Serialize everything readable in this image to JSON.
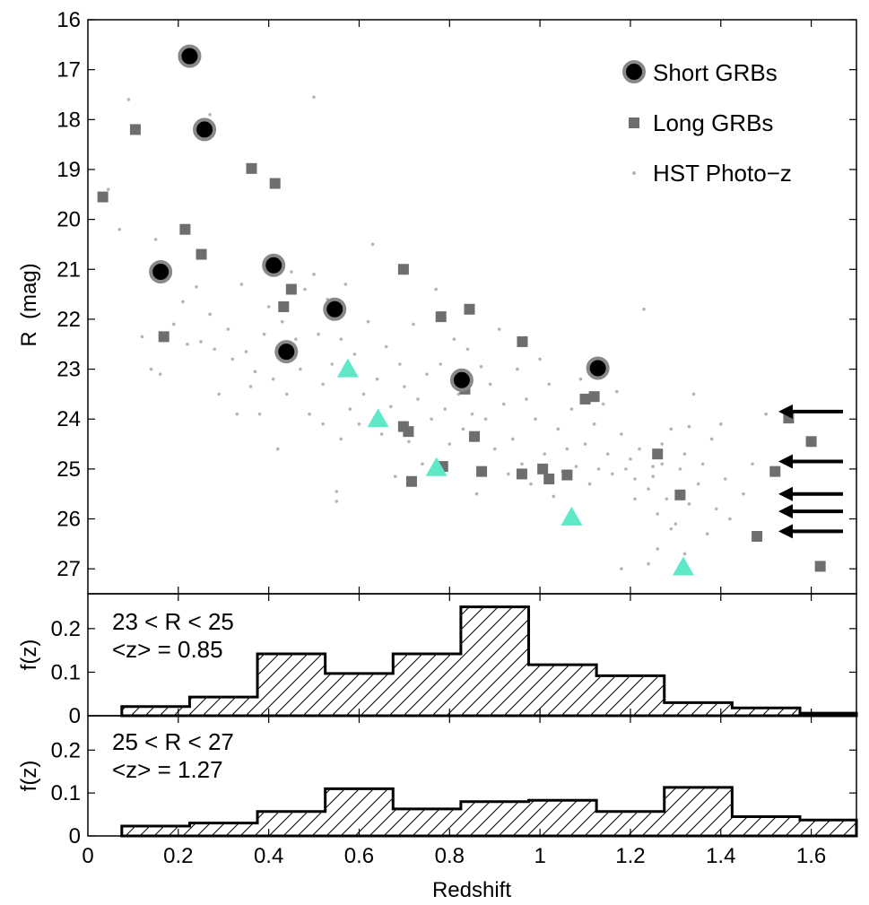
{
  "colors": {
    "short": "#000000",
    "short_ring": "#888888",
    "long": "#6e6e6e",
    "photoz": "#b4b4b4",
    "triangle": "#5fe8c8",
    "arrow": "#000000",
    "hist": "#000000"
  },
  "chart_data": [
    {
      "type": "scatter",
      "panel": "top",
      "title": "",
      "xlabel": "",
      "ylabel": "R  (mag)",
      "xlim": [
        0,
        1.7
      ],
      "ylim": [
        27.5,
        16
      ],
      "yticks": [
        "16",
        "17",
        "18",
        "19",
        "20",
        "21",
        "22",
        "23",
        "24",
        "25",
        "26",
        "27"
      ],
      "legend": {
        "position": "top-right",
        "entries": [
          {
            "key": "short",
            "label": "Short GRBs"
          },
          {
            "key": "long",
            "label": "Long GRBs"
          },
          {
            "key": "photoz",
            "label": "HST Photo−z"
          }
        ]
      },
      "series": [
        {
          "name": "Short GRBs",
          "marker": "circle",
          "points": [
            [
              0.225,
              16.73
            ],
            [
              0.258,
              18.2
            ],
            [
              0.161,
              21.05
            ],
            [
              0.411,
              20.92
            ],
            [
              0.546,
              21.8
            ],
            [
              0.439,
              22.65
            ],
            [
              0.827,
              23.22
            ],
            [
              1.128,
              22.98
            ]
          ]
        },
        {
          "name": "Long GRBs",
          "marker": "square",
          "points": [
            [
              0.033,
              19.55
            ],
            [
              0.105,
              18.2
            ],
            [
              0.215,
              20.2
            ],
            [
              0.251,
              20.7
            ],
            [
              0.362,
              18.98
            ],
            [
              0.414,
              19.28
            ],
            [
              0.433,
              21.75
            ],
            [
              0.45,
              21.4
            ],
            [
              0.168,
              22.35
            ],
            [
              0.698,
              21.0
            ],
            [
              0.781,
              21.95
            ],
            [
              0.844,
              21.8
            ],
            [
              0.961,
              22.45
            ],
            [
              0.698,
              24.15
            ],
            [
              0.709,
              24.25
            ],
            [
              0.716,
              25.25
            ],
            [
              0.785,
              24.95
            ],
            [
              0.855,
              24.35
            ],
            [
              0.834,
              23.4
            ],
            [
              0.871,
              25.05
            ],
            [
              0.96,
              25.1
            ],
            [
              1.006,
              25.0
            ],
            [
              1.02,
              25.2
            ],
            [
              1.06,
              25.12
            ],
            [
              1.1,
              23.6
            ],
            [
              1.12,
              23.55
            ],
            [
              1.26,
              24.7
            ],
            [
              1.31,
              25.52
            ],
            [
              1.55,
              23.98
            ],
            [
              1.52,
              25.05
            ],
            [
              1.6,
              24.45
            ],
            [
              1.48,
              26.35
            ],
            [
              1.62,
              26.95
            ]
          ]
        },
        {
          "name": "HST Photo−z",
          "marker": "dot",
          "points": [
            [
              0.045,
              19.4
            ],
            [
              0.07,
              20.2
            ],
            [
              0.09,
              17.6
            ],
            [
              0.15,
              20.4
            ],
            [
              0.12,
              22.35
            ],
            [
              0.14,
              23.0
            ],
            [
              0.16,
              23.1
            ],
            [
              0.19,
              22.1
            ],
            [
              0.21,
              21.65
            ],
            [
              0.22,
              22.5
            ],
            [
              0.24,
              21.35
            ],
            [
              0.25,
              22.45
            ],
            [
              0.27,
              17.9
            ],
            [
              0.27,
              21.9
            ],
            [
              0.28,
              22.6
            ],
            [
              0.29,
              23.5
            ],
            [
              0.31,
              22.2
            ],
            [
              0.32,
              22.8
            ],
            [
              0.33,
              23.9
            ],
            [
              0.34,
              21.3
            ],
            [
              0.35,
              22.65
            ],
            [
              0.36,
              23.35
            ],
            [
              0.37,
              23.05
            ],
            [
              0.38,
              23.9
            ],
            [
              0.39,
              22.3
            ],
            [
              0.4,
              21.75
            ],
            [
              0.41,
              23.2
            ],
            [
              0.42,
              24.6
            ],
            [
              0.43,
              22.05
            ],
            [
              0.44,
              23.5
            ],
            [
              0.45,
              21.05
            ],
            [
              0.46,
              22.4
            ],
            [
              0.47,
              23.0
            ],
            [
              0.48,
              21.4
            ],
            [
              0.49,
              23.9
            ],
            [
              0.5,
              17.55
            ],
            [
              0.5,
              21.1
            ],
            [
              0.51,
              22.3
            ],
            [
              0.52,
              23.3
            ],
            [
              0.52,
              24.1
            ],
            [
              0.53,
              21.6
            ],
            [
              0.54,
              22.9
            ],
            [
              0.55,
              25.45
            ],
            [
              0.55,
              25.65
            ],
            [
              0.56,
              22.4
            ],
            [
              0.56,
              24.4
            ],
            [
              0.57,
              21.3
            ],
            [
              0.58,
              23.8
            ],
            [
              0.59,
              22.7
            ],
            [
              0.6,
              24.1
            ],
            [
              0.61,
              23.5
            ],
            [
              0.62,
              22.05
            ],
            [
              0.63,
              20.5
            ],
            [
              0.64,
              23.2
            ],
            [
              0.65,
              24.3
            ],
            [
              0.66,
              22.55
            ],
            [
              0.67,
              23.75
            ],
            [
              0.68,
              25.15
            ],
            [
              0.69,
              22.9
            ],
            [
              0.7,
              23.35
            ],
            [
              0.71,
              24.45
            ],
            [
              0.72,
              22.1
            ],
            [
              0.73,
              23.6
            ],
            [
              0.74,
              24.9
            ],
            [
              0.75,
              23.1
            ],
            [
              0.76,
              24.0
            ],
            [
              0.77,
              21.4
            ],
            [
              0.78,
              22.9
            ],
            [
              0.79,
              23.8
            ],
            [
              0.8,
              24.5
            ],
            [
              0.81,
              22.4
            ],
            [
              0.82,
              23.5
            ],
            [
              0.83,
              24.2
            ],
            [
              0.84,
              22.6
            ],
            [
              0.85,
              23.9
            ],
            [
              0.86,
              25.5
            ],
            [
              0.87,
              22.95
            ],
            [
              0.88,
              24.0
            ],
            [
              0.89,
              23.3
            ],
            [
              0.9,
              24.6
            ],
            [
              0.91,
              22.2
            ],
            [
              0.92,
              23.7
            ],
            [
              0.93,
              25.1
            ],
            [
              0.94,
              24.4
            ],
            [
              0.95,
              23.0
            ],
            [
              0.96,
              24.9
            ],
            [
              0.97,
              23.6
            ],
            [
              0.98,
              25.3
            ],
            [
              0.99,
              24.0
            ],
            [
              1.0,
              22.8
            ],
            [
              1.01,
              24.7
            ],
            [
              1.02,
              23.3
            ],
            [
              1.03,
              25.55
            ],
            [
              1.04,
              24.2
            ],
            [
              1.05,
              25.05
            ],
            [
              1.06,
              24.6
            ],
            [
              1.07,
              23.8
            ],
            [
              1.08,
              24.95
            ],
            [
              1.09,
              23.2
            ],
            [
              1.1,
              24.5
            ],
            [
              1.11,
              25.3
            ],
            [
              1.12,
              24.1
            ],
            [
              1.13,
              25.0
            ],
            [
              1.14,
              23.7
            ],
            [
              1.15,
              24.7
            ],
            [
              1.16,
              25.1
            ],
            [
              1.17,
              23.45
            ],
            [
              1.18,
              24.3
            ],
            [
              1.19,
              25.0
            ],
            [
              1.2,
              24.8
            ],
            [
              1.21,
              25.2
            ],
            [
              1.22,
              24.6
            ],
            [
              1.23,
              21.8
            ],
            [
              1.24,
              25.4
            ],
            [
              1.25,
              24.95
            ],
            [
              1.26,
              25.9
            ],
            [
              1.27,
              24.5
            ],
            [
              1.28,
              25.6
            ],
            [
              1.29,
              24.2
            ],
            [
              1.3,
              26.1
            ],
            [
              1.31,
              25.0
            ],
            [
              1.32,
              24.7
            ],
            [
              1.33,
              25.7
            ],
            [
              1.34,
              23.5
            ],
            [
              1.35,
              25.3
            ],
            [
              1.36,
              24.9
            ],
            [
              1.37,
              26.3
            ],
            [
              1.38,
              24.4
            ],
            [
              1.39,
              25.8
            ],
            [
              1.4,
              24.1
            ],
            [
              1.41,
              25.2
            ],
            [
              1.42,
              26.0
            ],
            [
              1.45,
              25.5
            ],
            [
              1.47,
              24.9
            ],
            [
              1.5,
              23.9
            ],
            [
              1.24,
              26.9
            ],
            [
              1.32,
              26.7
            ],
            [
              1.26,
              26.6
            ],
            [
              1.18,
              27.0
            ],
            [
              1.29,
              26.2
            ],
            [
              1.33,
              24.15
            ],
            [
              1.27,
              24.9
            ],
            [
              1.25,
              25.15
            ],
            [
              1.21,
              25.6
            ]
          ]
        },
        {
          "name": "triangles",
          "marker": "triangle",
          "points": [
            [
              0.575,
              23.0
            ],
            [
              0.642,
              24.0
            ],
            [
              0.771,
              24.98
            ],
            [
              1.07,
              25.97
            ],
            [
              1.317,
              26.97
            ]
          ]
        }
      ],
      "upper_limit_arrows_R": [
        23.85,
        24.85,
        25.5,
        25.85,
        26.25
      ]
    },
    {
      "type": "histogram",
      "panel": "middle",
      "annotations": [
        "23 < R < 25",
        "<z> = 0.85"
      ],
      "ylabel": "f(z)",
      "xlim": [
        0,
        1.7
      ],
      "ylim": [
        0,
        0.28
      ],
      "yticks": [
        "0",
        "0.1",
        "0.2"
      ],
      "bin_edges": [
        0.075,
        0.225,
        0.375,
        0.525,
        0.675,
        0.825,
        0.975,
        1.125,
        1.275,
        1.425,
        1.575,
        1.7
      ],
      "values": [
        0.021,
        0.043,
        0.142,
        0.097,
        0.142,
        0.25,
        0.117,
        0.092,
        0.03,
        0.018,
        0.006
      ]
    },
    {
      "type": "histogram",
      "panel": "bottom",
      "annotations": [
        "25 < R < 27",
        "<z> = 1.27"
      ],
      "ylabel": "f(z)",
      "xlabel": "Redshift",
      "xlim": [
        0,
        1.7
      ],
      "ylim": [
        0,
        0.28
      ],
      "yticks": [
        "0",
        "0.1",
        "0.2"
      ],
      "xticks": [
        "0",
        "0.2",
        "0.4",
        "0.6",
        "0.8",
        "1",
        "1.2",
        "1.4",
        "1.6"
      ],
      "bin_edges": [
        0.075,
        0.225,
        0.375,
        0.525,
        0.675,
        0.825,
        0.975,
        1.125,
        1.275,
        1.425,
        1.575,
        1.7
      ],
      "values": [
        0.023,
        0.03,
        0.057,
        0.11,
        0.063,
        0.08,
        0.083,
        0.057,
        0.113,
        0.045,
        0.037
      ]
    }
  ]
}
